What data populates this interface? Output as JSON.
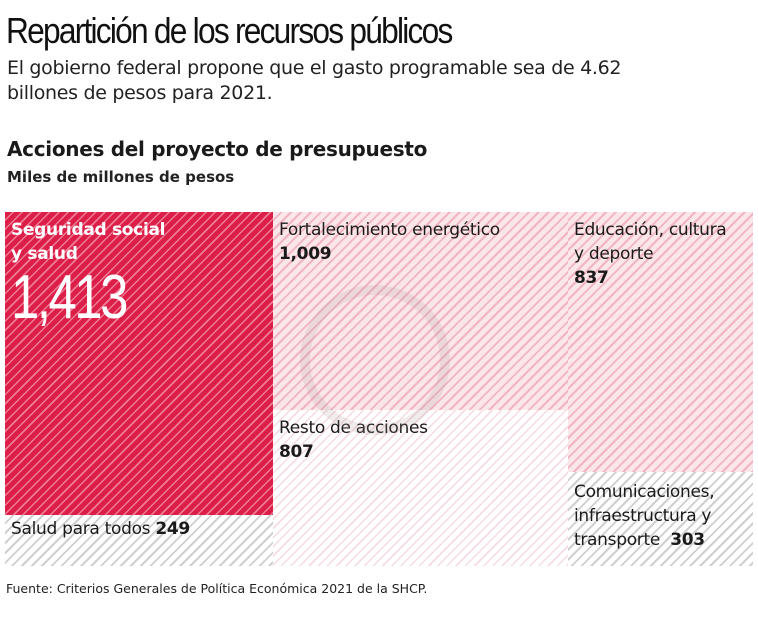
{
  "header": {
    "title": "Repartición de los recursos públicos",
    "subtitle": "El gobierno federal propone que el gasto programable sea de 4.62 billones de pesos para 2021.",
    "section_title": "Acciones del proyecto de presupuesto",
    "unit": "Miles de millones de pesos"
  },
  "chart_data": {
    "type": "treemap",
    "title": "Acciones del proyecto de presupuesto",
    "unit": "Miles de millones de pesos",
    "items": [
      {
        "label": "Seguridad social y salud",
        "label_lines": [
          "Seguridad social",
          "y salud"
        ],
        "value": 1413,
        "display": "1,413",
        "color": "#dc1f48"
      },
      {
        "label": "Salud para todos",
        "value": 249,
        "display": "249",
        "color": "#cfcfcf"
      },
      {
        "label": "Fortalecimiento energético",
        "value": 1009,
        "display": "1,009",
        "color": "#f3b4c2"
      },
      {
        "label": "Resto de acciones",
        "value": 807,
        "display": "807",
        "color": "#f6dce2"
      },
      {
        "label": "Educación, cultura y deporte",
        "label_lines": [
          "Educación, cultura",
          "y deporte"
        ],
        "value": 837,
        "display": "837",
        "color": "#f3b4c2"
      },
      {
        "label": "Comunicaciones, infraestructura y transporte",
        "label_lines": [
          "Comunicaciones,",
          "infraestructura y",
          "transporte"
        ],
        "value": 303,
        "display": "303",
        "color": "#cfcfcf"
      }
    ]
  },
  "footer": {
    "source": "Fuente: Criterios Generales de Política Económica 2021 de la SHCP."
  }
}
